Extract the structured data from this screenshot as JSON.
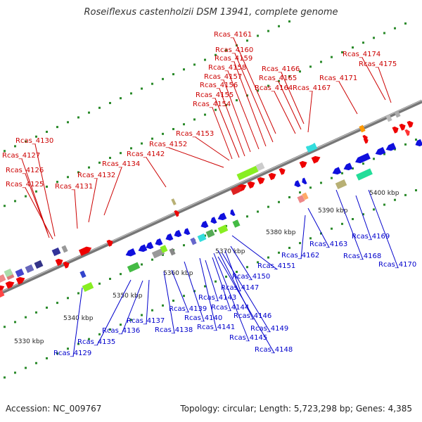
{
  "title": "Roseiflexus castenholzii DSM 13941, complete genome",
  "footer": {
    "accession": "Accession: NC_009767",
    "summary": "Topology: circular; Length: 5,723,298 bp; Genes: 4,385"
  },
  "colors": {
    "forward_labels": "#cc0000",
    "reverse_labels": "#0000cc",
    "backbone": "#777777",
    "tick_dots": "#2a8a2a"
  },
  "scale": {
    "labels": [
      "5330 kbp",
      "5340 kbp",
      "5350 kbp",
      "5360 kbp",
      "5370 kbp",
      "5380 kbp",
      "5390 kbp",
      "5400 kbp"
    ]
  },
  "genes_forward": [
    "Rcas_4125",
    "Rcas_4126",
    "Rcas_4127",
    "Rcas_4130",
    "Rcas_4131",
    "Rcas_4132",
    "Rcas_4134",
    "Rcas_4142",
    "Rcas_4152",
    "Rcas_4153",
    "Rcas_4154",
    "Rcas_4155",
    "Rcas_4156",
    "Rcas_4157",
    "Rcas_4158",
    "Rcas_4159",
    "Rcas_4160",
    "Rcas_4161",
    "Rcas_4164",
    "Rcas_4165",
    "Rcas_4166",
    "Rcas_4167",
    "Rcas_4171",
    "Rcas_4174",
    "Rcas_4175"
  ],
  "genes_reverse": [
    "Rcas_4129",
    "Rcas_4135",
    "Rcas_4136",
    "Rcas_4137",
    "Rcas_4138",
    "Rcas_4139",
    "Rcas_4140",
    "Rcas_4141",
    "Rcas_4143",
    "Rcas_4144",
    "Rcas_4145",
    "Rcas_4146",
    "Rcas_4147",
    "Rcas_4148",
    "Rcas_4149",
    "Rcas_4150",
    "Rcas_4151",
    "Rcas_4162",
    "Rcas_4163",
    "Rcas_4168",
    "Rcas_4169",
    "Rcas_4170"
  ]
}
